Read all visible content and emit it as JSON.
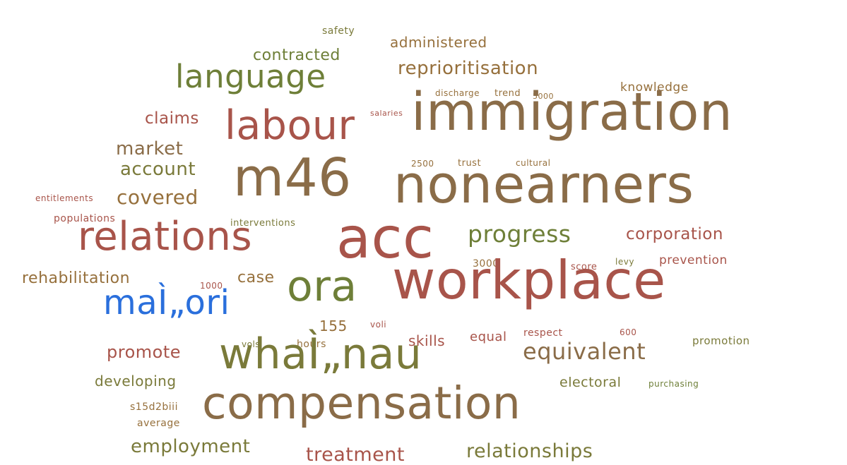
{
  "cloud": {
    "colors": {
      "red": "#a8544a",
      "brown": "#8a6c48",
      "olive": "#7a7a3a",
      "green": "#6e7f38",
      "gold": "#96703c",
      "blue": "#2a6fdc"
    },
    "words": [
      "safety",
      "administered",
      "contracted",
      "language",
      "reprioritisation",
      "knowledge",
      "discharge",
      "trend",
      "5000",
      "salaries",
      "immigration",
      "claims",
      "labour",
      "market",
      "account",
      "m46",
      "2500",
      "trust",
      "cultural",
      "nonearners",
      "entitlements",
      "covered",
      "populations",
      "interventions",
      "relations",
      "acc",
      "progress",
      "corporation",
      "3000",
      "score",
      "levy",
      "prevention",
      "rehabilitation",
      "case",
      "1000",
      "ora",
      "workplace",
      "maÌ„ori",
      "155",
      "voli",
      "skills",
      "equal",
      "respect",
      "600",
      "promotion",
      "promote",
      "vols",
      "hours",
      "whaÌ„nau",
      "equivalent",
      "developing",
      "electoral",
      "purchasing",
      "s15d2biii",
      "compensation",
      "average",
      "employment",
      "treatment",
      "relationships"
    ]
  }
}
